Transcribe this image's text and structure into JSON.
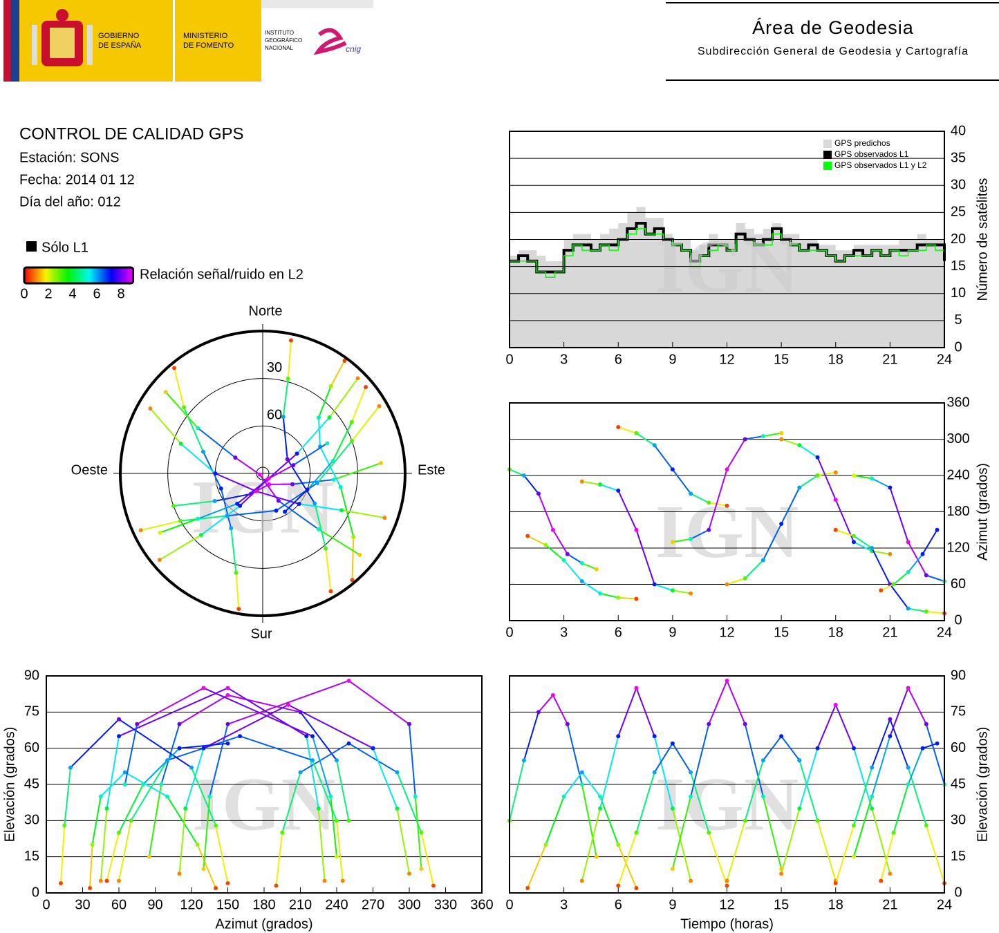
{
  "header": {
    "gov": [
      "GOBIERNO",
      "DE ESPAÑA"
    ],
    "ministry": [
      "MINISTERIO",
      "DE FOMENTO"
    ],
    "institute": [
      "INSTITUTO",
      "GEOGRÁFICO",
      "NACIONAL"
    ],
    "cnig": "cnig",
    "title": "Área de Geodesia",
    "subtitle": "Subdirección General de Geodesia y Cartografía"
  },
  "info": {
    "title": "CONTROL DE CALIDAD GPS",
    "lines": [
      "Estación: SONS",
      "Fecha: 2014 01 12",
      "Día del año: 012"
    ]
  },
  "legend": {
    "l1": "Sólo L1",
    "snr_label": "Relación señal/ruido en L2",
    "snr_lim": [
      0,
      9
    ],
    "snr_ticks": [
      0,
      2,
      4,
      6,
      8
    ]
  },
  "watermark": "IGN",
  "satellites": [
    {
      "t": [
        0,
        0.8,
        1.6,
        2.4,
        3.2,
        4,
        4.8
      ],
      "az": [
        250,
        240,
        210,
        150,
        110,
        95,
        85
      ],
      "el": [
        30,
        55,
        75,
        82,
        70,
        45,
        15
      ],
      "snr": [
        3,
        6,
        8,
        9,
        8,
        5,
        1.5
      ]
    },
    {
      "t": [
        1,
        2,
        3,
        4,
        5,
        6,
        7
      ],
      "az": [
        140,
        125,
        100,
        65,
        45,
        38,
        36
      ],
      "el": [
        2,
        20,
        40,
        50,
        40,
        20,
        2
      ],
      "snr": [
        0.5,
        2.5,
        5,
        6,
        5,
        2.5,
        0.5
      ]
    },
    {
      "t": [
        4,
        5,
        6,
        7,
        8,
        9,
        10
      ],
      "az": [
        230,
        225,
        215,
        150,
        60,
        50,
        45
      ],
      "el": [
        5,
        35,
        65,
        85,
        65,
        35,
        5
      ],
      "snr": [
        1,
        4,
        7,
        9,
        7,
        4,
        1
      ]
    },
    {
      "t": [
        6,
        7,
        8,
        9,
        10,
        11,
        12
      ],
      "az": [
        320,
        310,
        290,
        250,
        210,
        195,
        190
      ],
      "el": [
        3,
        25,
        50,
        62,
        50,
        25,
        3
      ],
      "snr": [
        0.5,
        3,
        6,
        7,
        6,
        3,
        0.5
      ]
    },
    {
      "t": [
        9,
        10,
        11,
        12,
        13,
        14,
        15
      ],
      "az": [
        130,
        135,
        150,
        250,
        300,
        305,
        310
      ],
      "el": [
        10,
        40,
        70,
        88,
        70,
        40,
        10
      ],
      "snr": [
        1.5,
        5,
        8,
        9,
        8,
        5,
        1.5
      ]
    },
    {
      "t": [
        12,
        13,
        14,
        15,
        16,
        17,
        18
      ],
      "az": [
        60,
        70,
        100,
        160,
        220,
        240,
        245
      ],
      "el": [
        5,
        30,
        55,
        65,
        55,
        30,
        5
      ],
      "snr": [
        1,
        3,
        6,
        7,
        6,
        3,
        1
      ]
    },
    {
      "t": [
        15,
        16,
        17,
        18,
        19,
        20,
        21
      ],
      "az": [
        300,
        290,
        270,
        200,
        130,
        115,
        110
      ],
      "el": [
        8,
        35,
        60,
        78,
        60,
        35,
        8
      ],
      "snr": [
        1,
        4,
        7,
        9,
        7,
        4,
        1
      ]
    },
    {
      "t": [
        18,
        19,
        20,
        21,
        22,
        23,
        24
      ],
      "az": [
        150,
        140,
        120,
        60,
        20,
        15,
        12
      ],
      "el": [
        4,
        28,
        52,
        72,
        52,
        28,
        4
      ],
      "snr": [
        0.5,
        3,
        6,
        8,
        6,
        3,
        0.5
      ]
    },
    {
      "t": [
        19,
        20,
        21,
        22,
        23,
        24
      ],
      "az": [
        240,
        235,
        220,
        130,
        75,
        65
      ],
      "el": [
        15,
        40,
        65,
        85,
        70,
        45
      ],
      "snr": [
        2,
        5,
        7,
        9,
        8,
        5
      ]
    },
    {
      "t": [
        20.5,
        21.2,
        22,
        22.8,
        23.6
      ],
      "az": [
        50,
        60,
        80,
        110,
        150
      ],
      "el": [
        5,
        25,
        45,
        60,
        62
      ],
      "snr": [
        0.5,
        3,
        5,
        7,
        7
      ]
    }
  ],
  "chart_data": [
    {
      "type": "step",
      "ylabel": "Número de satélites",
      "xlim": [
        0,
        24
      ],
      "xticks": [
        0,
        3,
        6,
        9,
        12,
        15,
        18,
        21,
        24
      ],
      "ylim": [
        0,
        40
      ],
      "yticks": [
        0,
        5,
        10,
        15,
        20,
        25,
        30,
        35,
        40
      ],
      "grid": true,
      "legend": "upper right",
      "x": [
        0,
        0.5,
        1,
        1.5,
        2,
        2.5,
        3,
        3.5,
        4,
        4.5,
        5,
        5.5,
        6,
        6.5,
        7,
        7.5,
        8,
        8.5,
        9,
        9.5,
        10,
        10.5,
        11,
        11.5,
        12,
        12.5,
        13,
        13.5,
        14,
        14.5,
        15,
        15.5,
        16,
        16.5,
        17,
        17.5,
        18,
        18.5,
        19,
        19.5,
        20,
        20.5,
        21,
        21.5,
        22,
        22.5,
        23,
        23.5,
        24
      ],
      "series": [
        {
          "name": "GPS predichos",
          "color": "#d8d8d8",
          "values": [
            17,
            18,
            18,
            17,
            16,
            16,
            20,
            21,
            21,
            20,
            21,
            22,
            23,
            25,
            26,
            24,
            24,
            21,
            20,
            20,
            18,
            19,
            21,
            20,
            20,
            23,
            22,
            21,
            22,
            23,
            21,
            21,
            20,
            20,
            19,
            19,
            18,
            18,
            19,
            19,
            19,
            19,
            19,
            20,
            20,
            21,
            20,
            20,
            17
          ]
        },
        {
          "name": "GPS observados L1",
          "color": "#000000",
          "values": [
            16,
            17,
            16,
            14,
            14,
            14,
            18,
            19,
            19,
            18,
            19,
            19,
            20,
            22,
            23,
            21,
            22,
            20,
            19,
            18,
            16,
            17,
            19,
            19,
            18,
            21,
            20,
            19,
            20,
            22,
            20,
            19,
            18,
            19,
            18,
            17,
            16,
            17,
            18,
            17,
            18,
            17,
            18,
            18,
            18,
            19,
            19,
            19,
            16
          ]
        },
        {
          "name": "GPS observados L1 y L2",
          "color": "#00ff00",
          "values": [
            16,
            16,
            16,
            14,
            13,
            14,
            17,
            19,
            18,
            18,
            19,
            18,
            20,
            21,
            22,
            21,
            21,
            20,
            19,
            18,
            15,
            17,
            18,
            19,
            18,
            20,
            20,
            19,
            19,
            21,
            20,
            19,
            18,
            18,
            18,
            17,
            16,
            17,
            17,
            17,
            18,
            17,
            18,
            17,
            18,
            18,
            19,
            18,
            16
          ]
        }
      ]
    },
    {
      "type": "polar",
      "directions": {
        "north": "Norte",
        "south": "Sur",
        "west": "Oeste",
        "east": "Este"
      },
      "rlim": [
        0,
        90
      ],
      "rticks": [
        30,
        60
      ]
    },
    {
      "type": "scatter",
      "ylabel": "Azimut (grados)",
      "xlim": [
        0,
        24
      ],
      "xticks": [
        0,
        3,
        6,
        9,
        12,
        15,
        18,
        21,
        24
      ],
      "ylim": [
        0,
        360
      ],
      "yticks": [
        0,
        60,
        120,
        180,
        240,
        300,
        360
      ],
      "grid": true
    },
    {
      "type": "scatter",
      "xlabel": "Azimut (grados)",
      "ylabel": "Elevación (grados)",
      "xlim": [
        0,
        360
      ],
      "xticks": [
        0,
        30,
        60,
        90,
        120,
        150,
        180,
        210,
        240,
        270,
        300,
        330,
        360
      ],
      "ylim": [
        0,
        90
      ],
      "yticks": [
        0,
        15,
        30,
        45,
        60,
        75,
        90
      ],
      "grid": true
    },
    {
      "type": "scatter",
      "xlabel": "Tiempo (horas)",
      "ylabel": "Elevación (grados)",
      "xlim": [
        0,
        24
      ],
      "xticks": [
        0,
        3,
        6,
        9,
        12,
        15,
        18,
        21,
        24
      ],
      "ylim": [
        0,
        90
      ],
      "yticks": [
        0,
        15,
        30,
        45,
        60,
        75,
        90
      ],
      "grid": true
    }
  ]
}
